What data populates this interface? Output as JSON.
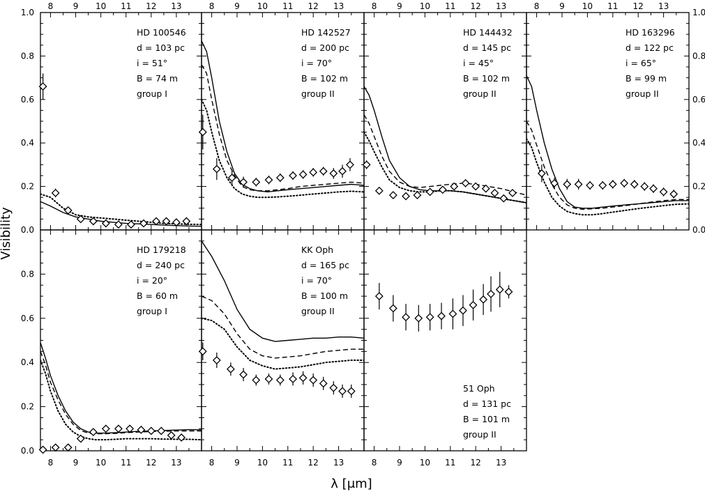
{
  "figure": {
    "ylabel": "Visibility",
    "xlabel": "λ [μm]",
    "xlim": [
      7.6,
      14.0
    ],
    "ylim": [
      0.0,
      1.0
    ],
    "x_ticks": [
      "8",
      "9",
      "10",
      "11",
      "12",
      "13"
    ],
    "y_ticks": [
      "0.0",
      "0.2",
      "0.4",
      "0.6",
      "0.8",
      "1.0"
    ],
    "y_ticks_row2": [
      "0.0",
      "0.2",
      "0.4",
      "0.6",
      "0.8"
    ],
    "line_styles": {
      "solid": "#000000",
      "dashed": "#000000",
      "dotted": "#000000"
    }
  },
  "chart_data": [
    {
      "type": "scatter",
      "panel": "HD 100546",
      "labels": [
        "HD 100546",
        "d = 103 pc",
        "i = 51°",
        "B = 74 m",
        "group I"
      ],
      "points": {
        "x": [
          7.7,
          8.2,
          8.7,
          9.2,
          9.7,
          10.2,
          10.7,
          11.2,
          11.7,
          12.2,
          12.6,
          13.0,
          13.4
        ],
        "y": [
          0.66,
          0.17,
          0.09,
          0.05,
          0.04,
          0.03,
          0.025,
          0.025,
          0.03,
          0.04,
          0.04,
          0.035,
          0.04
        ],
        "err": [
          0.06,
          0.02,
          0.01,
          0.01,
          0.01,
          0.01,
          0.01,
          0.01,
          0.01,
          0.01,
          0.01,
          0.01,
          0.01
        ]
      },
      "models": {
        "solid": {
          "x": [
            7.6,
            8.0,
            8.5,
            9.0,
            9.5,
            10.0,
            10.5,
            11.0,
            11.5,
            12.0,
            12.5,
            13.0,
            13.5,
            14.0
          ],
          "y": [
            0.13,
            0.11,
            0.08,
            0.06,
            0.05,
            0.04,
            0.035,
            0.03,
            0.028,
            0.025,
            0.022,
            0.02,
            0.018,
            0.017
          ]
        },
        "dotted": {
          "x": [
            7.6,
            8.0,
            8.5,
            9.0,
            9.5,
            10.0,
            10.5,
            11.0,
            11.5,
            12.0,
            12.5,
            13.0,
            13.5,
            14.0
          ],
          "y": [
            0.165,
            0.15,
            0.1,
            0.07,
            0.06,
            0.055,
            0.05,
            0.045,
            0.04,
            0.035,
            0.03,
            0.028,
            0.026,
            0.025
          ]
        }
      }
    },
    {
      "type": "scatter",
      "panel": "HD 142527",
      "labels": [
        "HD 142527",
        "d = 200 pc",
        "i = 70°",
        "B = 102 m",
        "group II"
      ],
      "points": {
        "x": [
          7.65,
          8.2,
          8.8,
          9.25,
          9.75,
          10.25,
          10.7,
          11.2,
          11.6,
          12.0,
          12.4,
          12.8,
          13.15,
          13.45
        ],
        "y": [
          0.45,
          0.28,
          0.24,
          0.22,
          0.22,
          0.23,
          0.24,
          0.25,
          0.255,
          0.265,
          0.27,
          0.26,
          0.27,
          0.3
        ],
        "err": [
          0.08,
          0.05,
          0.03,
          0.025,
          0.02,
          0.02,
          0.02,
          0.02,
          0.02,
          0.02,
          0.02,
          0.025,
          0.03,
          0.03
        ]
      },
      "models": {
        "solid": {
          "x": [
            7.6,
            7.8,
            8.0,
            8.3,
            8.6,
            8.9,
            9.2,
            9.5,
            9.8,
            10.2,
            10.6,
            11.0,
            11.5,
            12.0,
            12.5,
            13.0,
            13.5,
            14.0
          ],
          "y": [
            0.87,
            0.82,
            0.7,
            0.5,
            0.36,
            0.26,
            0.21,
            0.19,
            0.18,
            0.175,
            0.18,
            0.185,
            0.19,
            0.195,
            0.2,
            0.205,
            0.21,
            0.205
          ]
        },
        "dashed": {
          "x": [
            7.6,
            7.8,
            8.0,
            8.3,
            8.6,
            8.9,
            9.2,
            9.5,
            9.8,
            10.2,
            10.6,
            11.0,
            11.5,
            12.0,
            12.5,
            13.0,
            13.5,
            14.0
          ],
          "y": [
            0.76,
            0.72,
            0.6,
            0.44,
            0.32,
            0.25,
            0.2,
            0.185,
            0.18,
            0.18,
            0.185,
            0.19,
            0.2,
            0.205,
            0.21,
            0.215,
            0.22,
            0.215
          ]
        },
        "dotted": {
          "x": [
            7.6,
            7.8,
            8.0,
            8.3,
            8.6,
            8.9,
            9.2,
            9.5,
            9.8,
            10.2,
            10.6,
            11.0,
            11.5,
            12.0,
            12.5,
            13.0,
            13.5,
            14.0
          ],
          "y": [
            0.6,
            0.55,
            0.45,
            0.32,
            0.24,
            0.19,
            0.165,
            0.155,
            0.15,
            0.15,
            0.152,
            0.155,
            0.16,
            0.165,
            0.17,
            0.175,
            0.178,
            0.175
          ]
        }
      }
    },
    {
      "type": "scatter",
      "panel": "HD 144432",
      "labels": [
        "HD 144432",
        "d = 145 pc",
        "i = 45°",
        "B = 102 m",
        "group II"
      ],
      "points": {
        "x": [
          7.7,
          8.2,
          8.75,
          9.25,
          9.7,
          10.2,
          10.7,
          11.15,
          11.6,
          12.0,
          12.4,
          12.75,
          13.1,
          13.45
        ],
        "y": [
          0.3,
          0.18,
          0.16,
          0.155,
          0.16,
          0.175,
          0.185,
          0.2,
          0.215,
          0.2,
          0.19,
          0.17,
          0.145,
          0.17
        ],
        "err": [
          0.02,
          0.01,
          0.01,
          0.01,
          0.01,
          0.01,
          0.01,
          0.01,
          0.01,
          0.01,
          0.01,
          0.01,
          0.01,
          0.01
        ]
      },
      "models": {
        "solid": {
          "x": [
            7.6,
            7.8,
            8.0,
            8.3,
            8.6,
            9.0,
            9.4,
            9.8,
            10.2,
            10.6,
            11.0,
            11.5,
            12.0,
            12.5,
            13.0,
            13.5,
            14.0
          ],
          "y": [
            0.66,
            0.62,
            0.55,
            0.43,
            0.32,
            0.24,
            0.2,
            0.185,
            0.18,
            0.18,
            0.18,
            0.175,
            0.165,
            0.155,
            0.145,
            0.135,
            0.125
          ]
        },
        "dashed": {
          "x": [
            7.6,
            7.8,
            8.0,
            8.3,
            8.6,
            9.0,
            9.4,
            9.8,
            10.2,
            10.6,
            11.0,
            11.5,
            12.0,
            12.5,
            13.0,
            13.5,
            14.0
          ],
          "y": [
            0.53,
            0.49,
            0.43,
            0.34,
            0.27,
            0.22,
            0.2,
            0.195,
            0.2,
            0.205,
            0.21,
            0.215,
            0.21,
            0.2,
            0.19,
            0.175,
            0.16
          ]
        },
        "dotted": {
          "x": [
            7.6,
            7.8,
            8.0,
            8.3,
            8.6,
            9.0,
            9.4,
            9.8,
            10.2,
            10.6,
            11.0,
            11.5,
            12.0,
            12.5,
            13.0,
            13.5,
            14.0
          ],
          "y": [
            0.45,
            0.41,
            0.36,
            0.29,
            0.23,
            0.195,
            0.18,
            0.175,
            0.175,
            0.18,
            0.18,
            0.175,
            0.165,
            0.155,
            0.145,
            0.135,
            0.125
          ]
        }
      }
    },
    {
      "type": "scatter",
      "panel": "HD 163296",
      "labels": [
        "HD 163296",
        "d = 122 pc",
        "i = 65°",
        "B = 99 m",
        "group II"
      ],
      "points": {
        "x": [
          8.2,
          8.7,
          9.2,
          9.65,
          10.1,
          10.6,
          11.0,
          11.45,
          11.85,
          12.25,
          12.6,
          13.0,
          13.4
        ],
        "y": [
          0.26,
          0.215,
          0.21,
          0.21,
          0.205,
          0.205,
          0.21,
          0.215,
          0.21,
          0.2,
          0.19,
          0.175,
          0.165
        ],
        "err": [
          0.04,
          0.025,
          0.025,
          0.025,
          0.02,
          0.02,
          0.02,
          0.02,
          0.02,
          0.02,
          0.02,
          0.02,
          0.02
        ]
      },
      "models": {
        "solid": {
          "x": [
            7.6,
            7.8,
            8.0,
            8.3,
            8.6,
            8.9,
            9.2,
            9.5,
            9.8,
            10.2,
            10.6,
            11.0,
            11.5,
            12.0,
            12.5,
            13.0,
            13.5,
            14.0
          ],
          "y": [
            0.71,
            0.66,
            0.55,
            0.4,
            0.28,
            0.19,
            0.13,
            0.105,
            0.1,
            0.1,
            0.105,
            0.11,
            0.115,
            0.12,
            0.125,
            0.13,
            0.135,
            0.135
          ]
        },
        "dashed": {
          "x": [
            7.6,
            7.8,
            8.0,
            8.3,
            8.6,
            8.9,
            9.2,
            9.5,
            9.8,
            10.2,
            10.6,
            11.0,
            11.5,
            12.0,
            12.5,
            13.0,
            13.5,
            14.0
          ],
          "y": [
            0.5,
            0.46,
            0.39,
            0.29,
            0.21,
            0.15,
            0.115,
            0.1,
            0.095,
            0.097,
            0.1,
            0.105,
            0.112,
            0.12,
            0.128,
            0.135,
            0.14,
            0.14
          ]
        },
        "dotted": {
          "x": [
            7.6,
            7.8,
            8.0,
            8.3,
            8.6,
            8.9,
            9.2,
            9.5,
            9.8,
            10.2,
            10.6,
            11.0,
            11.5,
            12.0,
            12.5,
            13.0,
            13.5,
            14.0
          ],
          "y": [
            0.42,
            0.38,
            0.31,
            0.22,
            0.15,
            0.11,
            0.085,
            0.075,
            0.07,
            0.07,
            0.075,
            0.082,
            0.09,
            0.098,
            0.105,
            0.112,
            0.118,
            0.12
          ]
        }
      }
    },
    {
      "type": "scatter",
      "panel": "HD 179218",
      "labels": [
        "HD 179218",
        "d = 240 pc",
        "i = 20°",
        "B = 60 m",
        "group I"
      ],
      "points": {
        "x": [
          7.7,
          8.2,
          8.7,
          9.2,
          9.7,
          10.2,
          10.7,
          11.15,
          11.6,
          12.0,
          12.4,
          12.8,
          13.2
        ],
        "y": [
          0.005,
          0.015,
          0.015,
          0.055,
          0.085,
          0.1,
          0.1,
          0.1,
          0.095,
          0.09,
          0.09,
          0.07,
          0.06
        ],
        "err": [
          0.008,
          0.008,
          0.008,
          0.01,
          0.01,
          0.012,
          0.012,
          0.012,
          0.01,
          0.01,
          0.01,
          0.01,
          0.01
        ]
      },
      "models": {
        "solid": {
          "x": [
            7.6,
            7.8,
            8.0,
            8.3,
            8.6,
            8.9,
            9.2,
            9.5,
            9.8,
            10.2,
            10.6,
            11.0,
            11.5,
            12.0,
            12.5,
            13.0,
            13.5,
            14.0
          ],
          "y": [
            0.49,
            0.42,
            0.34,
            0.25,
            0.18,
            0.13,
            0.1,
            0.085,
            0.08,
            0.08,
            0.082,
            0.085,
            0.088,
            0.09,
            0.092,
            0.094,
            0.096,
            0.095
          ]
        },
        "dashed": {
          "x": [
            7.6,
            7.8,
            8.0,
            8.3,
            8.6,
            8.9,
            9.2,
            9.5,
            9.8,
            10.2,
            10.6,
            11.0,
            11.5,
            12.0,
            12.5,
            13.0,
            13.5,
            14.0
          ],
          "y": [
            0.45,
            0.39,
            0.31,
            0.23,
            0.165,
            0.12,
            0.092,
            0.08,
            0.077,
            0.077,
            0.079,
            0.082,
            0.085,
            0.087,
            0.089,
            0.09,
            0.09,
            0.09
          ]
        },
        "dotted": {
          "x": [
            7.6,
            7.8,
            8.0,
            8.3,
            8.6,
            8.9,
            9.2,
            9.5,
            9.8,
            10.2,
            10.6,
            11.0,
            11.5,
            12.0,
            12.5,
            13.0,
            13.5,
            14.0
          ],
          "y": [
            0.41,
            0.35,
            0.27,
            0.18,
            0.12,
            0.085,
            0.065,
            0.055,
            0.05,
            0.05,
            0.052,
            0.055,
            0.055,
            0.055,
            0.053,
            0.052,
            0.052,
            0.05
          ]
        }
      }
    },
    {
      "type": "scatter",
      "panel": "KK Oph",
      "labels": [
        "KK Oph",
        "d = 165 pc",
        "i = 70°",
        "B = 100 m",
        "group II"
      ],
      "points": {
        "x": [
          7.65,
          8.2,
          8.75,
          9.25,
          9.75,
          10.25,
          10.7,
          11.2,
          11.6,
          12.0,
          12.4,
          12.8,
          13.15,
          13.5
        ],
        "y": [
          0.45,
          0.41,
          0.37,
          0.345,
          0.32,
          0.325,
          0.32,
          0.325,
          0.33,
          0.32,
          0.305,
          0.285,
          0.27,
          0.27
        ],
        "err": [
          0.04,
          0.035,
          0.03,
          0.03,
          0.025,
          0.025,
          0.025,
          0.03,
          0.03,
          0.03,
          0.03,
          0.03,
          0.03,
          0.03
        ]
      },
      "models": {
        "solid": {
          "x": [
            7.6,
            8.0,
            8.5,
            9.0,
            9.5,
            10.0,
            10.5,
            11.0,
            11.5,
            12.0,
            12.5,
            13.0,
            13.5,
            14.0
          ],
          "y": [
            0.95,
            0.88,
            0.77,
            0.64,
            0.55,
            0.51,
            0.495,
            0.5,
            0.505,
            0.51,
            0.51,
            0.515,
            0.515,
            0.51
          ]
        },
        "dashed": {
          "x": [
            7.6,
            8.0,
            8.5,
            9.0,
            9.5,
            10.0,
            10.5,
            11.0,
            11.5,
            12.0,
            12.5,
            13.0,
            13.5,
            14.0
          ],
          "y": [
            0.7,
            0.68,
            0.62,
            0.53,
            0.46,
            0.43,
            0.42,
            0.425,
            0.43,
            0.44,
            0.45,
            0.455,
            0.46,
            0.46
          ]
        },
        "dotted": {
          "x": [
            7.6,
            8.0,
            8.5,
            9.0,
            9.5,
            10.0,
            10.5,
            11.0,
            11.5,
            12.0,
            12.5,
            13.0,
            13.5,
            14.0
          ],
          "y": [
            0.6,
            0.59,
            0.55,
            0.47,
            0.41,
            0.385,
            0.37,
            0.375,
            0.38,
            0.39,
            0.4,
            0.405,
            0.41,
            0.41
          ]
        }
      }
    },
    {
      "type": "scatter",
      "panel": "51 Oph",
      "labels": [
        "51 Oph",
        "d = 131 pc",
        "B = 101 m",
        "group II"
      ],
      "points": {
        "x": [
          8.2,
          8.75,
          9.25,
          9.75,
          10.2,
          10.65,
          11.1,
          11.5,
          11.9,
          12.3,
          12.6,
          12.95,
          13.3
        ],
        "y": [
          0.7,
          0.645,
          0.605,
          0.6,
          0.605,
          0.61,
          0.62,
          0.635,
          0.66,
          0.685,
          0.71,
          0.73,
          0.72
        ],
        "err": [
          0.06,
          0.06,
          0.06,
          0.06,
          0.06,
          0.06,
          0.07,
          0.07,
          0.07,
          0.07,
          0.08,
          0.08,
          0.03
        ]
      },
      "models": {}
    }
  ]
}
